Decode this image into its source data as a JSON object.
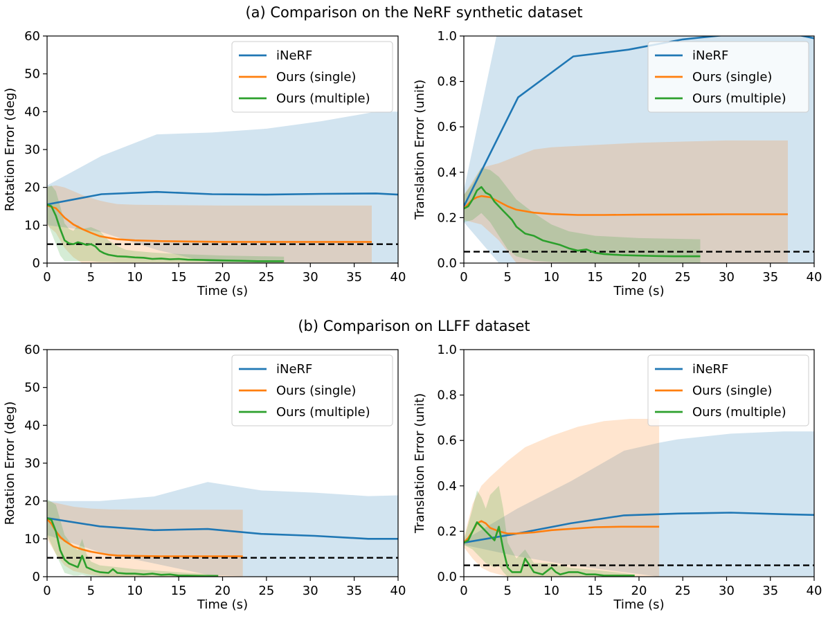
{
  "figure": {
    "section_a_title": "(a) Comparison on the NeRF synthetic dataset",
    "section_b_title": "(b) Comparison on LLFF dataset"
  },
  "colors": {
    "inerf": "#1f77b4",
    "single": "#ff7f0e",
    "multiple": "#2ca02c",
    "threshold": "#000000"
  },
  "chart_data": [
    {
      "id": "a-rotation",
      "type": "line",
      "title": "",
      "xlabel": "Time (s)",
      "ylabel": "Rotation Error (deg)",
      "xlim": [
        0,
        40
      ],
      "ylim": [
        0,
        60
      ],
      "xticks": [
        0,
        5,
        10,
        15,
        20,
        25,
        30,
        35,
        40
      ],
      "yticks": [
        0,
        10,
        20,
        30,
        40,
        50,
        60
      ],
      "threshold": 5,
      "legend_position": "upper right",
      "series": [
        {
          "name": "iNeRF",
          "key": "inerf",
          "x": [
            0,
            6.2,
            12.5,
            18.8,
            25,
            31.3,
            37.5,
            40
          ],
          "y": [
            15.5,
            18.2,
            18.8,
            18.2,
            18.1,
            18.3,
            18.4,
            18.1
          ],
          "band_x": [
            0,
            6.2,
            12.5,
            18.8,
            25,
            31.3,
            37.5,
            40
          ],
          "band_upper": [
            20.5,
            28.3,
            34,
            34.5,
            35.5,
            37.5,
            40,
            40
          ],
          "band_lower": [
            10,
            8.2,
            3.5,
            0,
            0,
            0,
            0,
            0
          ]
        },
        {
          "name": "Ours (single)",
          "key": "single",
          "x": [
            0,
            1,
            2,
            3,
            4,
            5,
            6,
            8,
            10,
            13,
            16,
            20,
            25,
            30,
            37
          ],
          "y": [
            15.2,
            14.5,
            12,
            10.2,
            9,
            8,
            7.1,
            6.3,
            6,
            5.8,
            5.7,
            5.6,
            5.6,
            5.6,
            5.6
          ],
          "band_x": [
            0,
            1,
            2,
            3,
            4,
            5,
            6,
            7,
            8,
            10,
            15,
            20,
            30,
            37
          ],
          "band_upper": [
            20.2,
            20.5,
            20,
            19,
            18,
            17.2,
            16.5,
            16,
            15.6,
            15.4,
            15.3,
            15.2,
            15.2,
            15.2
          ],
          "band_lower": [
            10,
            8,
            4,
            1.5,
            0,
            0,
            0,
            0,
            0,
            0,
            0,
            0,
            0,
            0
          ]
        },
        {
          "name": "Ours (multiple)",
          "key": "multiple",
          "x": [
            0,
            0.5,
            1,
            1.5,
            2,
            2.5,
            3,
            3.5,
            4,
            4.5,
            5,
            5.5,
            6,
            6.5,
            7,
            8,
            9,
            10,
            11,
            12,
            13,
            14,
            15,
            16,
            18,
            20,
            22,
            24,
            27
          ],
          "y": [
            15.5,
            15,
            12.5,
            9,
            6,
            5.2,
            5,
            5.5,
            5.2,
            4.8,
            5,
            4.4,
            3.2,
            2.6,
            2.2,
            1.8,
            1.7,
            1.5,
            1.4,
            1.1,
            1.2,
            1,
            1.1,
            0.9,
            0.8,
            0.7,
            0.6,
            0.5,
            0.5
          ],
          "band_x": [
            0,
            0.5,
            1,
            1.5,
            2,
            2.5,
            3,
            3.5,
            4,
            5,
            6,
            7,
            8,
            9,
            10,
            12,
            15,
            20,
            27
          ],
          "band_upper": [
            20,
            20.5,
            19,
            15,
            10.5,
            9,
            8.5,
            10,
            9,
            9.5,
            8.5,
            6,
            4.5,
            3.5,
            3.2,
            2.8,
            2.4,
            2,
            1.7
          ],
          "band_lower": [
            11,
            8,
            5,
            2,
            0.5,
            0.5,
            0.5,
            0.5,
            0.5,
            0.5,
            0.3,
            0.3,
            0.2,
            0.2,
            0.2,
            0.2,
            0.2,
            0.1,
            0.1
          ]
        }
      ]
    },
    {
      "id": "a-translation",
      "type": "line",
      "title": "",
      "xlabel": "Time (s)",
      "ylabel": "Translation Error (unit)",
      "xlim": [
        0,
        40
      ],
      "ylim": [
        0,
        1.0
      ],
      "xticks": [
        0,
        5,
        10,
        15,
        20,
        25,
        30,
        35,
        40
      ],
      "yticks": [
        0.0,
        0.2,
        0.4,
        0.6,
        0.8,
        1.0
      ],
      "threshold": 0.05,
      "legend_position": "upper right",
      "series": [
        {
          "name": "iNeRF",
          "key": "inerf",
          "x": [
            0,
            6.2,
            12.5,
            18.8,
            25,
            31.3,
            37.5,
            40
          ],
          "y": [
            0.25,
            0.73,
            0.91,
            0.94,
            0.985,
            1.01,
            1.01,
            0.99
          ],
          "band_x": [
            0,
            4,
            6.2,
            12.5,
            18.8,
            25,
            31.3,
            37.5,
            40
          ],
          "band_upper": [
            0.32,
            1.05,
            1.05,
            1.05,
            1.05,
            1.05,
            1.05,
            1.05,
            1.05
          ],
          "band_lower": [
            0.18,
            0,
            0,
            0,
            0,
            0,
            0,
            0,
            0
          ]
        },
        {
          "name": "Ours (single)",
          "key": "single",
          "x": [
            0,
            0.5,
            1,
            1.5,
            2,
            3,
            4,
            5,
            6,
            8,
            10,
            13,
            16,
            20,
            25,
            30,
            37
          ],
          "y": [
            0.24,
            0.26,
            0.28,
            0.29,
            0.295,
            0.29,
            0.27,
            0.25,
            0.235,
            0.222,
            0.216,
            0.212,
            0.212,
            0.213,
            0.214,
            0.215,
            0.215
          ],
          "band_x": [
            0,
            2,
            4,
            6,
            8,
            10,
            15,
            20,
            25,
            30,
            37
          ],
          "band_upper": [
            0.3,
            0.42,
            0.44,
            0.47,
            0.5,
            0.51,
            0.52,
            0.53,
            0.535,
            0.54,
            0.54
          ],
          "band_lower": [
            0.19,
            0.17,
            0.1,
            0,
            0,
            0,
            0,
            0,
            0,
            0,
            0
          ]
        },
        {
          "name": "Ours (multiple)",
          "key": "multiple",
          "x": [
            0,
            0.5,
            1,
            1.5,
            2,
            2.5,
            3,
            3.5,
            4,
            4.5,
            5,
            5.5,
            6,
            7,
            8,
            9,
            10,
            11,
            12,
            13,
            14,
            15,
            16,
            18,
            20,
            22,
            24,
            27
          ],
          "y": [
            0.24,
            0.25,
            0.28,
            0.32,
            0.335,
            0.31,
            0.3,
            0.27,
            0.25,
            0.23,
            0.21,
            0.19,
            0.16,
            0.13,
            0.12,
            0.1,
            0.09,
            0.08,
            0.065,
            0.055,
            0.06,
            0.045,
            0.04,
            0.035,
            0.033,
            0.031,
            0.03,
            0.03
          ],
          "band_x": [
            0,
            1,
            2,
            3,
            4,
            5,
            6,
            8,
            10,
            12,
            15,
            20,
            27
          ],
          "band_upper": [
            0.3,
            0.35,
            0.42,
            0.41,
            0.38,
            0.33,
            0.28,
            0.22,
            0.17,
            0.14,
            0.12,
            0.11,
            0.105
          ],
          "band_lower": [
            0.18,
            0.19,
            0.22,
            0.18,
            0.12,
            0.06,
            0.03,
            0.01,
            0.005,
            0.003,
            0.002,
            0.001,
            0.001
          ]
        }
      ]
    },
    {
      "id": "b-rotation",
      "type": "line",
      "title": "",
      "xlabel": "Time (s)",
      "ylabel": "Rotation Error (deg)",
      "xlim": [
        0,
        40
      ],
      "ylim": [
        0,
        60
      ],
      "xticks": [
        0,
        5,
        10,
        15,
        20,
        25,
        30,
        35,
        40
      ],
      "yticks": [
        0,
        10,
        20,
        30,
        40,
        50,
        60
      ],
      "threshold": 5,
      "legend_position": "upper right",
      "series": [
        {
          "name": "iNeRF",
          "key": "inerf",
          "x": [
            0,
            6,
            12.2,
            18.3,
            24.4,
            30.5,
            36.6,
            40
          ],
          "y": [
            15.5,
            13.3,
            12.3,
            12.6,
            11.3,
            10.8,
            10,
            10
          ],
          "band_x": [
            0,
            6,
            12.2,
            18.3,
            24.4,
            30.5,
            36.6,
            40
          ],
          "band_upper": [
            20,
            20,
            21.2,
            25,
            22.8,
            22.2,
            21.3,
            21.5
          ],
          "band_lower": [
            11,
            6.5,
            3.5,
            0.5,
            0,
            0,
            0,
            0
          ]
        },
        {
          "name": "Ours (single)",
          "key": "single",
          "x": [
            0,
            0.5,
            1,
            1.5,
            2,
            3,
            4,
            5,
            6,
            7,
            8,
            10,
            13,
            16,
            19,
            22.3
          ],
          "y": [
            15.2,
            14,
            12,
            10.5,
            9.5,
            8,
            7.2,
            6.6,
            6.2,
            5.8,
            5.6,
            5.5,
            5.4,
            5.4,
            5.4,
            5.4
          ],
          "band_x": [
            0,
            1,
            2,
            3,
            5,
            7,
            10,
            15,
            20,
            22.3
          ],
          "band_upper": [
            20,
            19.5,
            19,
            18.5,
            18,
            17.8,
            17.7,
            17.7,
            17.7,
            17.7
          ],
          "band_lower": [
            10,
            6,
            3,
            1.5,
            0.5,
            0,
            0,
            0,
            0,
            0
          ]
        },
        {
          "name": "Ours (multiple)",
          "key": "multiple",
          "x": [
            0,
            0.5,
            1,
            1.5,
            2,
            2.5,
            3,
            3.5,
            4,
            4.5,
            5,
            5.5,
            6,
            7,
            7.5,
            8,
            9,
            10,
            11,
            12,
            13,
            14,
            15,
            16,
            18,
            19.5
          ],
          "y": [
            15.5,
            15,
            12,
            7,
            4.5,
            3.5,
            3,
            2.5,
            5.5,
            2.5,
            2,
            1.5,
            1.2,
            1,
            2,
            1,
            0.8,
            0.8,
            0.6,
            0.8,
            0.5,
            0.6,
            0.3,
            0.3,
            0.2,
            0.2
          ],
          "band_x": [
            0,
            1,
            2,
            3,
            3.5,
            4,
            4.5,
            5,
            6,
            8,
            10,
            13,
            16,
            19.5
          ],
          "band_upper": [
            20.5,
            19,
            11,
            8,
            7,
            10,
            6,
            4,
            3,
            2.5,
            2,
            1.5,
            1,
            0.5
          ],
          "band_lower": [
            11,
            6,
            1,
            0.3,
            0.3,
            0.5,
            0.2,
            0.2,
            0.1,
            0.1,
            0.1,
            0,
            0,
            0
          ]
        }
      ]
    },
    {
      "id": "b-translation",
      "type": "line",
      "title": "",
      "xlabel": "Time (s)",
      "ylabel": "Translation Error (unit)",
      "xlim": [
        0,
        40
      ],
      "ylim": [
        0,
        1.0
      ],
      "xticks": [
        0,
        5,
        10,
        15,
        20,
        25,
        30,
        35,
        40
      ],
      "yticks": [
        0.0,
        0.2,
        0.4,
        0.6,
        0.8,
        1.0
      ],
      "threshold": 0.05,
      "legend_position": "upper right",
      "series": [
        {
          "name": "iNeRF",
          "key": "inerf",
          "x": [
            0,
            6.1,
            12.2,
            18.3,
            24.4,
            30.5,
            36.6,
            40
          ],
          "y": [
            0.15,
            0.19,
            0.235,
            0.27,
            0.278,
            0.282,
            0.275,
            0.272
          ],
          "band_x": [
            0,
            6.1,
            12.2,
            18.3,
            22.3,
            24.4,
            30.5,
            36.6,
            40
          ],
          "band_upper": [
            0.16,
            0.3,
            0.42,
            0.555,
            0.59,
            0.605,
            0.63,
            0.64,
            0.64
          ],
          "band_lower": [
            0.14,
            0.09,
            0.05,
            0.02,
            0,
            0,
            0,
            0,
            0
          ]
        },
        {
          "name": "Ours (single)",
          "key": "single",
          "x": [
            0,
            0.5,
            1,
            1.5,
            2,
            2.5,
            3,
            4,
            5,
            6,
            8,
            10,
            12,
            15,
            18,
            22.3
          ],
          "y": [
            0.15,
            0.17,
            0.2,
            0.235,
            0.245,
            0.235,
            0.215,
            0.2,
            0.19,
            0.19,
            0.195,
            0.205,
            0.21,
            0.218,
            0.22,
            0.22
          ],
          "band_x": [
            0,
            1,
            2,
            3,
            5,
            7,
            10,
            13,
            16,
            19,
            22.3
          ],
          "band_upper": [
            0.17,
            0.32,
            0.4,
            0.44,
            0.51,
            0.57,
            0.62,
            0.66,
            0.685,
            0.695,
            0.695
          ],
          "band_lower": [
            0.13,
            0.08,
            0.04,
            0.02,
            0,
            0,
            0,
            0,
            0,
            0,
            0
          ]
        },
        {
          "name": "Ours (multiple)",
          "key": "multiple",
          "x": [
            0,
            0.5,
            1,
            1.5,
            2,
            2.5,
            3,
            3.5,
            4,
            4.5,
            5,
            5.5,
            6,
            6.5,
            7,
            7.5,
            8,
            9,
            10,
            10.5,
            11,
            12,
            13,
            14,
            15,
            16,
            18,
            19.5
          ],
          "y": [
            0.15,
            0.16,
            0.2,
            0.24,
            0.22,
            0.2,
            0.18,
            0.16,
            0.22,
            0.12,
            0.04,
            0.02,
            0.02,
            0.02,
            0.08,
            0.05,
            0.02,
            0.01,
            0.04,
            0.02,
            0.01,
            0.02,
            0.02,
            0.01,
            0.01,
            0.005,
            0.005,
            0.005
          ],
          "band_x": [
            0,
            1,
            1.5,
            2,
            2.5,
            3,
            3.5,
            4,
            4.5,
            5,
            6,
            7,
            8,
            10,
            12,
            15,
            19.5
          ],
          "band_upper": [
            0.16,
            0.3,
            0.38,
            0.35,
            0.3,
            0.36,
            0.38,
            0.4,
            0.3,
            0.15,
            0.08,
            0.12,
            0.06,
            0.06,
            0.04,
            0.03,
            0.01
          ],
          "band_lower": [
            0.14,
            0.12,
            0.1,
            0.08,
            0.06,
            0.05,
            0.04,
            0.05,
            0.02,
            0,
            0,
            0,
            0,
            0,
            0,
            0,
            0
          ]
        }
      ]
    }
  ]
}
